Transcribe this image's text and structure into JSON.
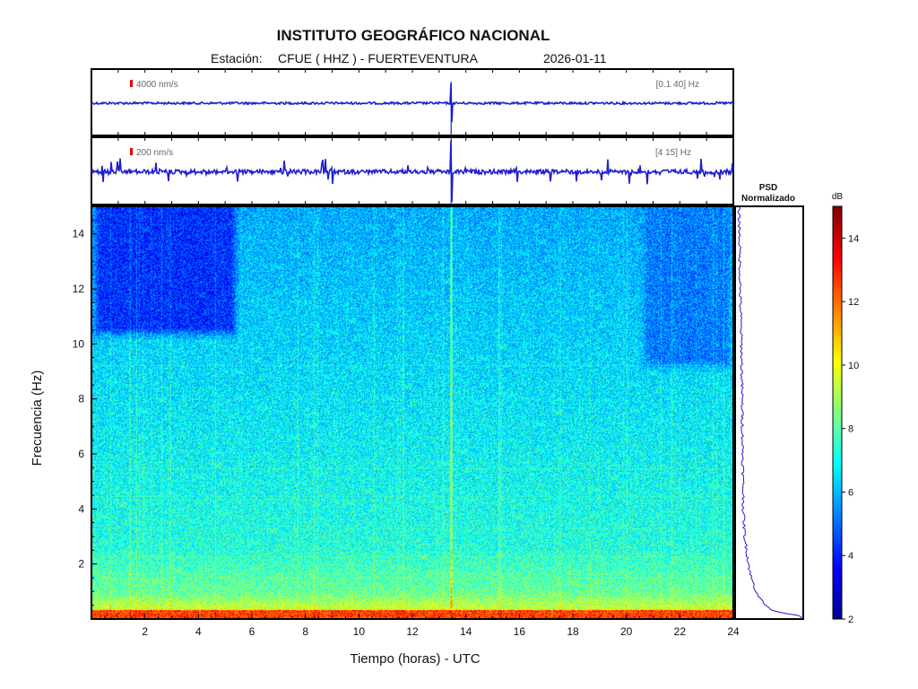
{
  "header": {
    "title": "INSTITUTO GEOGRÁFICO NACIONAL",
    "station_prefix": "Estación:",
    "station": "CFUE ( HHZ ) - FUERTEVENTURA",
    "date": "2026-01-11"
  },
  "colors": {
    "trace": "#1f1fd0",
    "scale_mark": "#e00000",
    "frame": "#000000"
  },
  "chart_data": [
    {
      "type": "line",
      "panel": "broadband-seismogram",
      "scale_label": "4000 nm/s",
      "filter_label": "[0.1 40] Hz",
      "xlim": [
        0,
        24
      ],
      "events": [
        {
          "t": 13.45,
          "amplitude": 1.0
        }
      ]
    },
    {
      "type": "line",
      "panel": "filtered-seismogram",
      "scale_label": "200 nm/s",
      "filter_label": "[4 15] Hz",
      "xlim": [
        0,
        24
      ],
      "events": [
        {
          "t": 13.45,
          "amplitude": 1.0
        }
      ]
    },
    {
      "type": "heatmap",
      "panel": "spectrogram",
      "xlabel": "Tiempo (horas) - UTC",
      "ylabel": "Frecuencia  (Hz)",
      "xlim": [
        0,
        24
      ],
      "ylim": [
        0,
        15
      ],
      "xticks": [
        2,
        4,
        6,
        8,
        10,
        12,
        14,
        16,
        18,
        20,
        22,
        24
      ],
      "yticks": [
        2,
        4,
        6,
        8,
        10,
        12,
        14
      ],
      "regions": [
        {
          "t0": 0,
          "t1": 5.5,
          "f0": 10.2,
          "f1": 15,
          "level": 4.2
        },
        {
          "t0": 20.5,
          "t1": 24,
          "f0": 9,
          "f1": 15,
          "level": 5.2
        }
      ],
      "event_t": 13.45
    },
    {
      "type": "line",
      "panel": "psd",
      "title": "PSD\nNormalizado",
      "ylim": [
        0,
        15
      ],
      "profile": [
        {
          "f": 0.1,
          "v": 1.0
        },
        {
          "f": 0.3,
          "v": 0.55
        },
        {
          "f": 0.6,
          "v": 0.4
        },
        {
          "f": 1.0,
          "v": 0.3
        },
        {
          "f": 1.5,
          "v": 0.22
        },
        {
          "f": 2.0,
          "v": 0.18
        },
        {
          "f": 3.0,
          "v": 0.12
        },
        {
          "f": 4.0,
          "v": 0.1
        },
        {
          "f": 6.0,
          "v": 0.09
        },
        {
          "f": 8.0,
          "v": 0.08
        },
        {
          "f": 10.0,
          "v": 0.07
        },
        {
          "f": 12.0,
          "v": 0.05
        },
        {
          "f": 14.0,
          "v": 0.04
        },
        {
          "f": 15.0,
          "v": 0.03
        }
      ]
    },
    {
      "type": "colorbar",
      "panel": "colorbar",
      "label": "dB",
      "range": [
        2,
        15
      ],
      "ticks": [
        2,
        4,
        6,
        8,
        10,
        12,
        14
      ]
    }
  ]
}
